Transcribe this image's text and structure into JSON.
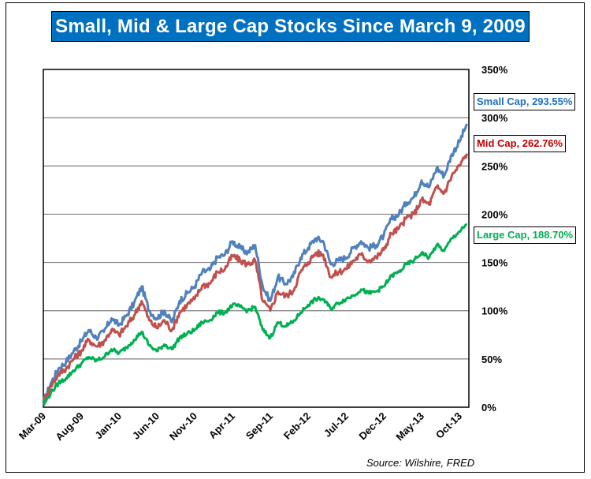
{
  "chart_data": {
    "type": "line",
    "title": "Small, Mid & Large Cap Stocks Since March 9, 2009",
    "xlabel": "",
    "ylabel": "",
    "ylim": [
      0,
      350
    ],
    "y_ticks": [
      "0%",
      "50%",
      "100%",
      "150%",
      "200%",
      "250%",
      "300%",
      "350%"
    ],
    "y_tick_values": [
      0,
      50,
      100,
      150,
      200,
      250,
      300,
      350
    ],
    "y_axis_side": "right",
    "grid": true,
    "x_tick_labels": [
      "Mar-09",
      "Aug-09",
      "Jan-10",
      "Jun-10",
      "Nov-10",
      "Apr-11",
      "Sep-11",
      "Feb-12",
      "Jul-12",
      "Dec-12",
      "May-13",
      "Oct-13"
    ],
    "x_tick_month_index": [
      0,
      5,
      10,
      15,
      20,
      25,
      30,
      35,
      40,
      45,
      50,
      55
    ],
    "x": [
      "Mar-09",
      "Apr-09",
      "May-09",
      "Jun-09",
      "Jul-09",
      "Aug-09",
      "Sep-09",
      "Oct-09",
      "Nov-09",
      "Dec-09",
      "Jan-10",
      "Feb-10",
      "Mar-10",
      "Apr-10",
      "May-10",
      "Jun-10",
      "Jul-10",
      "Aug-10",
      "Sep-10",
      "Oct-10",
      "Nov-10",
      "Dec-10",
      "Jan-11",
      "Feb-11",
      "Mar-11",
      "Apr-11",
      "May-11",
      "Jun-11",
      "Jul-11",
      "Aug-11",
      "Sep-11",
      "Oct-11",
      "Nov-11",
      "Dec-11",
      "Jan-12",
      "Feb-12",
      "Mar-12",
      "Apr-12",
      "May-12",
      "Jun-12",
      "Jul-12",
      "Aug-12",
      "Sep-12",
      "Oct-12",
      "Nov-12",
      "Dec-12",
      "Jan-13",
      "Feb-13",
      "Mar-13",
      "Apr-13",
      "May-13",
      "Jun-13",
      "Jul-13",
      "Aug-13",
      "Sep-13",
      "Oct-13",
      "Nov-13"
    ],
    "series": [
      {
        "name": "Small Cap",
        "color": "#4f81bd",
        "end_label": "Small Cap, 293.55%",
        "label_color": "#1f6fbf",
        "values": [
          5,
          25,
          40,
          47,
          58,
          68,
          80,
          72,
          78,
          92,
          85,
          95,
          108,
          125,
          100,
          92,
          100,
          88,
          110,
          118,
          125,
          140,
          142,
          155,
          158,
          172,
          165,
          160,
          168,
          125,
          110,
          135,
          128,
          135,
          155,
          165,
          175,
          172,
          148,
          152,
          155,
          165,
          172,
          165,
          168,
          178,
          195,
          200,
          212,
          218,
          235,
          228,
          248,
          240,
          262,
          275,
          293.55
        ]
      },
      {
        "name": "Mid Cap",
        "color": "#c0504d",
        "end_label": "Mid Cap, 262.76%",
        "label_color": "#c00000",
        "values": [
          5,
          22,
          34,
          40,
          50,
          58,
          70,
          63,
          68,
          80,
          75,
          84,
          95,
          110,
          90,
          82,
          90,
          80,
          98,
          106,
          112,
          126,
          128,
          140,
          143,
          157,
          152,
          148,
          152,
          110,
          100,
          120,
          115,
          120,
          140,
          150,
          160,
          158,
          135,
          140,
          143,
          152,
          158,
          152,
          155,
          163,
          180,
          185,
          196,
          200,
          215,
          210,
          228,
          222,
          240,
          250,
          262.76
        ]
      },
      {
        "name": "Large Cap",
        "color": "#00b050",
        "end_label": "Large Cap, 188.70%",
        "label_color": "#00b050",
        "values": [
          2,
          15,
          25,
          30,
          38,
          45,
          52,
          48,
          52,
          60,
          56,
          62,
          70,
          78,
          64,
          58,
          65,
          60,
          72,
          76,
          80,
          88,
          90,
          98,
          98,
          106,
          104,
          100,
          104,
          80,
          72,
          88,
          84,
          88,
          98,
          106,
          112,
          112,
          102,
          108,
          112,
          116,
          122,
          118,
          120,
          125,
          136,
          140,
          148,
          152,
          160,
          155,
          168,
          162,
          175,
          182,
          188.7
        ]
      }
    ]
  },
  "source_text": "Source: Wilshire, FRED"
}
